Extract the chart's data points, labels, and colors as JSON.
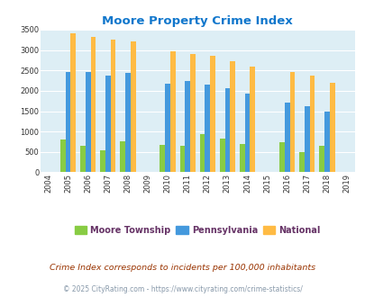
{
  "title": "Moore Property Crime Index",
  "bar_years": [
    2005,
    2006,
    2007,
    2008,
    2010,
    2011,
    2012,
    2013,
    2014,
    2016,
    2017,
    2018
  ],
  "moore": [
    800,
    650,
    530,
    750,
    675,
    650,
    930,
    820,
    700,
    730,
    490,
    650
  ],
  "pennsylvania": [
    2460,
    2470,
    2380,
    2440,
    2170,
    2230,
    2160,
    2060,
    1940,
    1720,
    1630,
    1490
  ],
  "national": [
    3420,
    3330,
    3260,
    3210,
    2960,
    2900,
    2860,
    2720,
    2590,
    2460,
    2370,
    2200
  ],
  "moore_color": "#88cc44",
  "penn_color": "#4499dd",
  "national_color": "#ffbb44",
  "bg_color": "#ddeef5",
  "title_color": "#1177cc",
  "subtitle": "Crime Index corresponds to incidents per 100,000 inhabitants",
  "footer": "© 2025 CityRating.com - https://www.cityrating.com/crime-statistics/",
  "ylim": [
    0,
    3500
  ],
  "yticks": [
    0,
    500,
    1000,
    1500,
    2000,
    2500,
    3000,
    3500
  ],
  "xticks": [
    2004,
    2005,
    2006,
    2007,
    2008,
    2009,
    2010,
    2011,
    2012,
    2013,
    2014,
    2015,
    2016,
    2017,
    2018,
    2019
  ],
  "bar_width": 0.26,
  "subtitle_color": "#993300",
  "footer_color": "#8899aa",
  "legend_label_color": "#663366"
}
